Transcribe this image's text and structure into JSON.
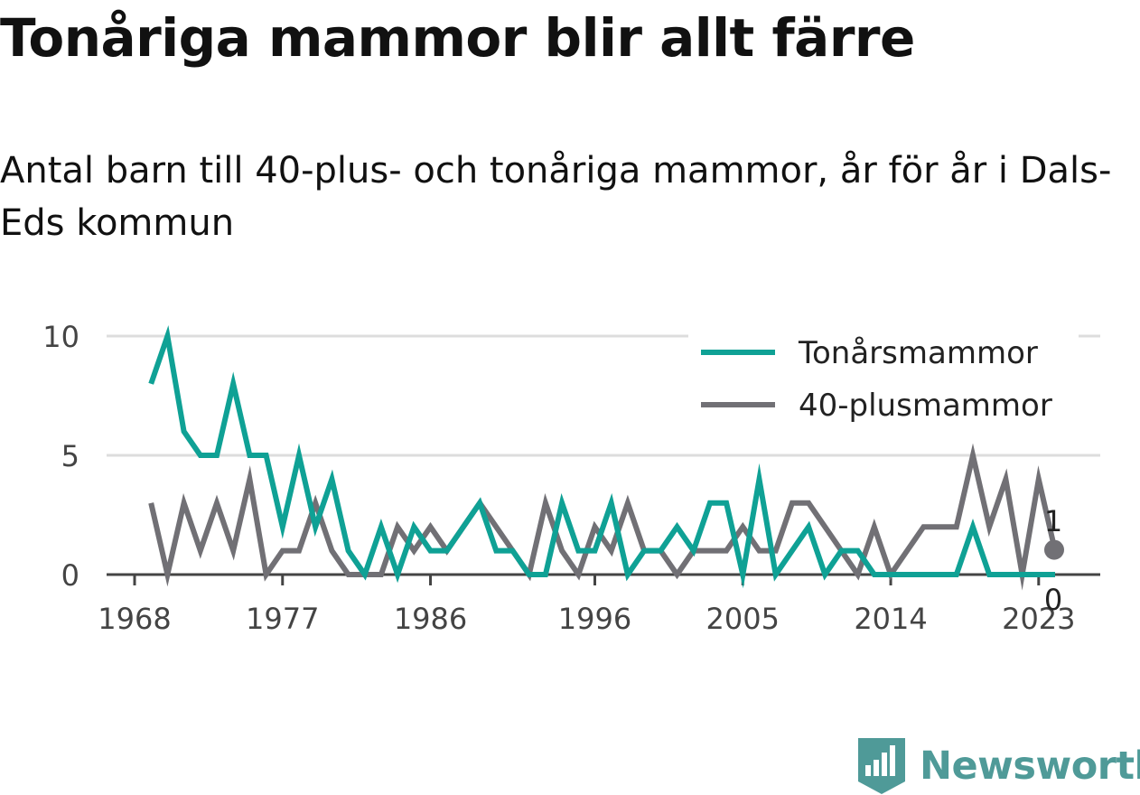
{
  "chart_data": {
    "type": "line",
    "title": "Tonåriga mammor blir allt färre",
    "subtitle": "Antal barn till 40-plus- och tonåriga mammor, år för år i Dals-Eds kommun",
    "xlabel": "",
    "ylabel": "",
    "x_ticks": [
      "1968",
      "1977",
      "1986",
      "1996",
      "2005",
      "2014",
      "2023"
    ],
    "y_ticks": [
      "0",
      "5",
      "10"
    ],
    "ylim": [
      0,
      10
    ],
    "xlim": [
      1968,
      2024
    ],
    "grid": true,
    "legend_position": "top-right",
    "x": [
      1969,
      1970,
      1971,
      1972,
      1973,
      1974,
      1975,
      1976,
      1977,
      1978,
      1979,
      1980,
      1981,
      1982,
      1983,
      1984,
      1985,
      1986,
      1987,
      1988,
      1989,
      1990,
      1991,
      1992,
      1993,
      1994,
      1995,
      1996,
      1997,
      1998,
      1999,
      2000,
      2001,
      2002,
      2003,
      2004,
      2005,
      2006,
      2007,
      2008,
      2009,
      2010,
      2011,
      2012,
      2013,
      2014,
      2015,
      2016,
      2017,
      2018,
      2019,
      2020,
      2021,
      2022,
      2023,
      2024
    ],
    "series": [
      {
        "name": "Tonårsmammor",
        "color": "#0fa195",
        "values": [
          8,
          10,
          6,
          5,
          5,
          8,
          5,
          5,
          2,
          5,
          2,
          4,
          1,
          0,
          2,
          0,
          2,
          1,
          1,
          2,
          3,
          1,
          1,
          0,
          0,
          3,
          1,
          1,
          3,
          0,
          1,
          1,
          2,
          1,
          3,
          3,
          0,
          4,
          0,
          1,
          2,
          0,
          1,
          1,
          0,
          0,
          0,
          0,
          0,
          0,
          2,
          0,
          0,
          0,
          0,
          0
        ],
        "end_label": "0"
      },
      {
        "name": "40-plusmammor",
        "color": "#717075",
        "values": [
          3,
          0,
          3,
          1,
          3,
          1,
          4,
          0,
          1,
          1,
          3,
          1,
          0,
          0,
          0,
          2,
          1,
          2,
          1,
          2,
          3,
          2,
          1,
          0,
          3,
          1,
          0,
          2,
          1,
          3,
          1,
          1,
          0,
          1,
          1,
          1,
          2,
          1,
          1,
          3,
          3,
          2,
          1,
          0,
          2,
          0,
          1,
          2,
          2,
          2,
          5,
          2,
          4,
          0,
          4,
          1
        ],
        "end_label": "1"
      }
    ]
  },
  "branding": {
    "name": "Newsworthy",
    "color": "#4f9a98",
    "icon": "bar-chart-badge-icon"
  }
}
